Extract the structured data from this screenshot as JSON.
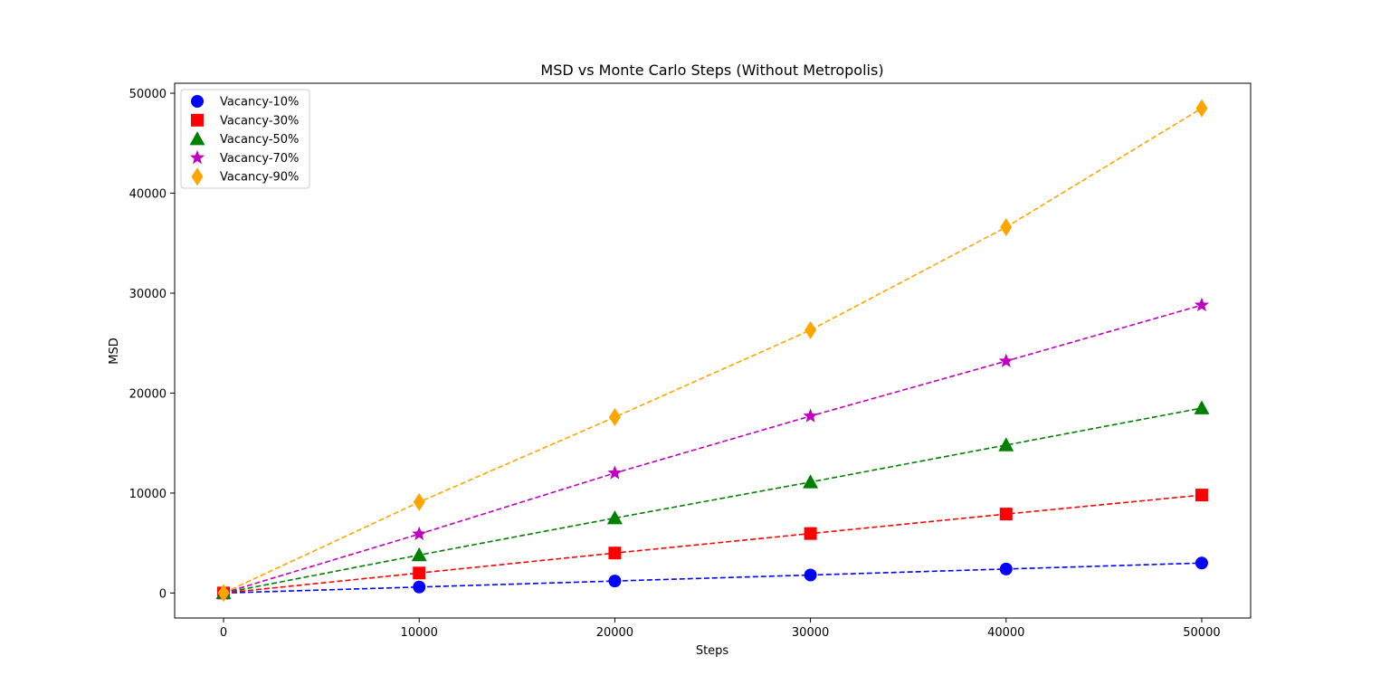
{
  "chart_data": {
    "type": "line",
    "title": "MSD vs Monte Carlo Steps (Without Metropolis)",
    "xlabel": "Steps",
    "ylabel": "MSD",
    "xlim": [
      -2500,
      52500
    ],
    "ylim": [
      -2500,
      51000
    ],
    "xticks": [
      0,
      10000,
      20000,
      30000,
      40000,
      50000
    ],
    "yticks": [
      0,
      10000,
      20000,
      30000,
      40000,
      50000
    ],
    "x": [
      0,
      10000,
      20000,
      30000,
      40000,
      50000
    ],
    "grid": false,
    "legend_position": "upper-left",
    "series": [
      {
        "name": "Vacancy-10%",
        "color": "#0000ff",
        "marker": "circle",
        "linestyle": "dashed",
        "values": [
          0,
          600,
          1200,
          1800,
          2400,
          3000
        ]
      },
      {
        "name": "Vacancy-30%",
        "color": "#ff0000",
        "marker": "square",
        "linestyle": "dashed",
        "values": [
          0,
          2000,
          4000,
          5950,
          7900,
          9800
        ]
      },
      {
        "name": "Vacancy-50%",
        "color": "#008000",
        "marker": "triangle",
        "linestyle": "dashed",
        "values": [
          0,
          3800,
          7500,
          11100,
          14800,
          18500
        ]
      },
      {
        "name": "Vacancy-70%",
        "color": "#bf00bf",
        "marker": "star",
        "linestyle": "dashed",
        "values": [
          0,
          5900,
          12000,
          17700,
          23200,
          28800
        ]
      },
      {
        "name": "Vacancy-90%",
        "color": "#ffa500",
        "marker": "diamond",
        "linestyle": "dashed",
        "values": [
          0,
          9100,
          17600,
          26300,
          36600,
          48500
        ]
      }
    ]
  }
}
